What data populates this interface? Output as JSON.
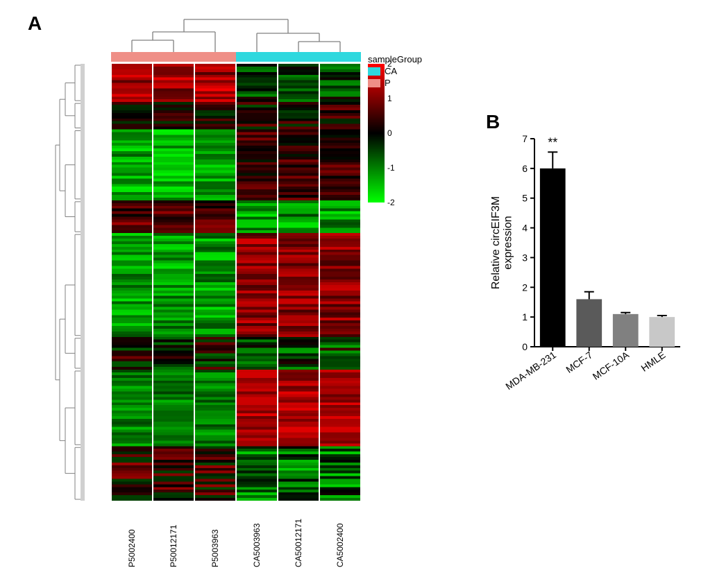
{
  "panelLabels": {
    "A": "A",
    "B": "B"
  },
  "heatmap": {
    "type": "heatmap",
    "nRows": 160,
    "columns": [
      {
        "id": "P5002400",
        "group": "P",
        "seed": 11
      },
      {
        "id": "P50012171",
        "group": "P",
        "seed": 22
      },
      {
        "id": "P5003963",
        "group": "P",
        "seed": 33
      },
      {
        "id": "CA5003963",
        "group": "CA",
        "seed": 44
      },
      {
        "id": "CA50012171",
        "group": "CA",
        "seed": 55
      },
      {
        "id": "CA5002400",
        "group": "CA",
        "seed": 66
      }
    ],
    "groupColors": {
      "CA": "#2fd8de",
      "P": "#ef8f87"
    },
    "colorScale": {
      "min": -2,
      "mid": 0,
      "max": 2,
      "minColor": "#00ff00",
      "midColor": "#000000",
      "maxColor": "#ff0000",
      "ticks": [
        2,
        1,
        0,
        -1,
        -2
      ]
    },
    "legend": {
      "title": "sampleGroup",
      "items": [
        {
          "label": "CA",
          "color": "#2fd8de"
        },
        {
          "label": "P",
          "color": "#ef8f87"
        }
      ]
    },
    "dendroColor": "#808080",
    "rowBlocks": [
      {
        "from": 0,
        "to": 14,
        "Pmean": 1.3,
        "CAmean": -0.4,
        "noise": 0.7
      },
      {
        "from": 14,
        "to": 24,
        "Pmean": 0.2,
        "CAmean": 0.2,
        "noise": 0.8
      },
      {
        "from": 24,
        "to": 50,
        "Pmean": -1.3,
        "CAmean": 0.4,
        "noise": 0.6
      },
      {
        "from": 50,
        "to": 62,
        "Pmean": 0.6,
        "CAmean": -1.2,
        "noise": 0.7
      },
      {
        "from": 62,
        "to": 100,
        "Pmean": -1.2,
        "CAmean": 1.1,
        "noise": 0.6
      },
      {
        "from": 100,
        "to": 112,
        "Pmean": 0.0,
        "CAmean": -0.4,
        "noise": 0.9
      },
      {
        "from": 112,
        "to": 140,
        "Pmean": -1.0,
        "CAmean": 1.3,
        "noise": 0.5
      },
      {
        "from": 140,
        "to": 160,
        "Pmean": 0.3,
        "CAmean": -0.8,
        "noise": 0.9
      }
    ]
  },
  "barChart": {
    "type": "bar",
    "ylabel_line1": "Relative circEIF3M",
    "ylabel_line2": "expression",
    "categories": [
      "MDA-MB-231",
      "MCF-7",
      "MCF-10A",
      "HMLE"
    ],
    "values": [
      6.0,
      1.6,
      1.1,
      1.0
    ],
    "errors": [
      0.55,
      0.25,
      0.05,
      0.05
    ],
    "colors": [
      "#000000",
      "#5a5a5a",
      "#808080",
      "#c8c8c8"
    ],
    "annotations": [
      {
        "index": 0,
        "text": "**"
      }
    ],
    "ylim": [
      0,
      7
    ],
    "ytick_step": 1,
    "label_fontsize": 14,
    "title_fontsize": 16,
    "bar_width": 0.7,
    "axis_color": "#000000",
    "background": "#ffffff",
    "errorbar_color": "#000000",
    "label_rotation_deg": 35
  }
}
